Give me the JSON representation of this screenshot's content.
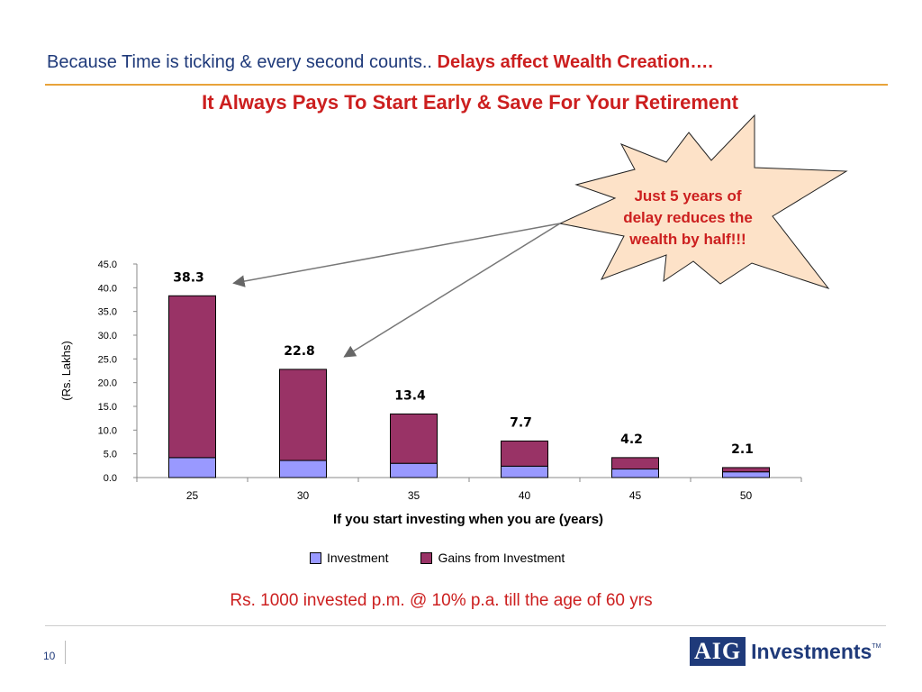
{
  "header": {
    "main": "Because Time is ticking & every second counts..",
    "accent": "Delays affect Wealth Creation…."
  },
  "subtitle": "It Always Pays To Start Early & Save For Your Retirement",
  "callout": "Just 5 years of delay reduces the wealth by half!!!",
  "footnote": "Rs. 1000 invested p.m. @ 10% p.a. till the age of 60 yrs",
  "page_number": "10",
  "logo": {
    "mark": "AIG",
    "name": "Investments",
    "tm": "TM"
  },
  "colors": {
    "investment": "#9999ff",
    "gains": "#993366",
    "accent_red": "#cc1f1f",
    "header_blue": "#1f3a7a",
    "callout_fill": "#fde2c8"
  },
  "chart_data": {
    "type": "bar",
    "stacked": true,
    "categories": [
      "25",
      "30",
      "35",
      "40",
      "45",
      "50"
    ],
    "series": [
      {
        "name": "Investment",
        "values": [
          4.2,
          3.6,
          3.0,
          2.4,
          1.8,
          1.2
        ]
      },
      {
        "name": "Gains from Investment",
        "values": [
          34.1,
          19.2,
          10.4,
          5.3,
          2.4,
          0.9
        ]
      }
    ],
    "totals": [
      "38.3",
      "22.8",
      "13.4",
      "7.7",
      "4.2",
      "2.1"
    ],
    "yticks": [
      "0.0",
      "5.0",
      "10.0",
      "15.0",
      "20.0",
      "25.0",
      "30.0",
      "35.0",
      "40.0",
      "45.0"
    ],
    "ylim": [
      0,
      45
    ],
    "ylabel": "(Rs. Lakhs)",
    "xlabel": "If you start investing when you are (years)",
    "legend": "bottom",
    "grid": false
  }
}
